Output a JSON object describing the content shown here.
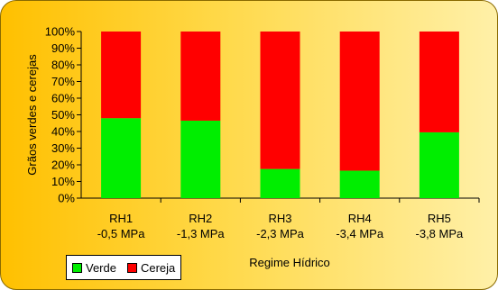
{
  "chart_data": {
    "type": "bar",
    "stacked": true,
    "percent": true,
    "categories": [
      [
        "RH1",
        "-0,5 MPa"
      ],
      [
        "RH2",
        "-1,3 MPa"
      ],
      [
        "RH3",
        "-2,3 MPa"
      ],
      [
        "RH4",
        "-3,4 MPa"
      ],
      [
        "RH5",
        "-3,8 MPa"
      ]
    ],
    "series": [
      {
        "name": "Verde",
        "color": "#00ee00",
        "values": [
          48,
          46.5,
          17.5,
          16.5,
          39.5
        ]
      },
      {
        "name": "Cereja",
        "color": "#ff0000",
        "values": [
          52,
          53.5,
          82.5,
          83.5,
          60.5
        ]
      }
    ],
    "xlabel": "Regime Hídrico",
    "ylabel": "Grãos verdes e cerejas",
    "ylim": [
      0,
      100
    ],
    "yticks": [
      0,
      10,
      20,
      30,
      40,
      50,
      60,
      70,
      80,
      90,
      100
    ],
    "ytick_suffix": "%",
    "grid": false,
    "legend_position": "bottom-left"
  }
}
